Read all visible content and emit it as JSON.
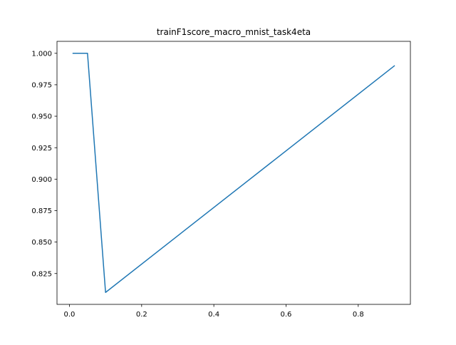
{
  "chart_data": {
    "type": "line",
    "title": "trainF1score_macro_mnist_task4eta",
    "xlabel": "",
    "ylabel": "",
    "xlim": [
      -0.0345,
      0.9445
    ],
    "ylim": [
      0.8005,
      1.0095
    ],
    "x_ticks": [
      0.0,
      0.2,
      0.4,
      0.6,
      0.8
    ],
    "x_tick_labels": [
      "0.0",
      "0.2",
      "0.4",
      "0.6",
      "0.8"
    ],
    "y_ticks": [
      0.825,
      0.85,
      0.875,
      0.9,
      0.925,
      0.95,
      0.975,
      1.0
    ],
    "y_tick_labels": [
      "0.825",
      "0.850",
      "0.875",
      "0.900",
      "0.925",
      "0.950",
      "0.975",
      "1.000"
    ],
    "grid": false,
    "series": [
      {
        "color": "#1f77b4",
        "x": [
          0.01,
          0.05,
          0.1,
          0.9
        ],
        "y": [
          1.0,
          1.0,
          0.81,
          0.99
        ]
      }
    ]
  }
}
